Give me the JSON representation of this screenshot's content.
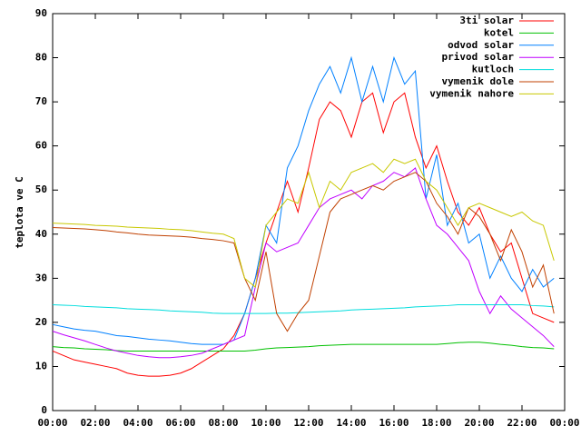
{
  "chart_data": {
    "type": "line",
    "ylabel": "teplota ve C",
    "x": [
      0,
      0.5,
      1,
      1.5,
      2,
      2.5,
      3,
      3.5,
      4,
      4.5,
      5,
      5.5,
      6,
      6.5,
      7,
      7.5,
      8,
      8.5,
      9,
      9.5,
      10,
      10.5,
      11,
      11.5,
      12,
      12.5,
      13,
      13.5,
      14,
      14.5,
      15,
      15.5,
      16,
      16.5,
      17,
      17.5,
      18,
      18.5,
      19,
      19.5,
      20,
      20.5,
      21,
      21.5,
      22,
      22.5,
      23,
      23.5
    ],
    "series": [
      {
        "name": "3ti solar",
        "color": "#ff0000",
        "values": [
          13.5,
          12.5,
          11.5,
          11,
          10.5,
          10,
          9.5,
          8.5,
          8,
          7.8,
          7.8,
          8,
          8.5,
          9.5,
          11,
          12.5,
          14,
          17,
          22,
          30,
          38,
          45,
          52,
          45,
          55,
          66,
          70,
          68,
          62,
          70,
          72,
          63,
          70,
          72,
          62,
          55,
          60,
          52,
          45,
          42,
          46,
          40,
          36,
          38,
          30,
          22,
          21,
          20
        ]
      },
      {
        "name": "kotel",
        "color": "#00c000",
        "values": [
          14.5,
          14.3,
          14.2,
          14,
          13.9,
          13.8,
          13.6,
          13.5,
          13.5,
          13.5,
          13.5,
          13.5,
          13.5,
          13.5,
          13.5,
          13.5,
          13.5,
          13.5,
          13.5,
          13.7,
          14,
          14.2,
          14.3,
          14.4,
          14.5,
          14.7,
          14.8,
          14.9,
          15,
          15,
          15,
          15,
          15,
          15,
          15,
          15,
          15,
          15.2,
          15.4,
          15.5,
          15.5,
          15.3,
          15,
          14.8,
          14.5,
          14.3,
          14.2,
          14
        ]
      },
      {
        "name": "odvod solar",
        "color": "#0080ff",
        "values": [
          19.5,
          19,
          18.5,
          18.2,
          18,
          17.5,
          17,
          16.8,
          16.5,
          16.2,
          16,
          15.8,
          15.5,
          15.2,
          15,
          15,
          15,
          16,
          22,
          30,
          42,
          38,
          55,
          60,
          68,
          74,
          78,
          72,
          80,
          70,
          78,
          70,
          80,
          74,
          77,
          48,
          58,
          42,
          47,
          38,
          40,
          30,
          35,
          30,
          27,
          32,
          28,
          30
        ]
      },
      {
        "name": "privod solar",
        "color": "#c000ff",
        "values": [
          18,
          17.2,
          16.5,
          15.8,
          15,
          14.2,
          13.5,
          13,
          12.5,
          12.2,
          12,
          12,
          12.2,
          12.5,
          13,
          14,
          15,
          16,
          17,
          28,
          38,
          36,
          37,
          38,
          42,
          46,
          48,
          49,
          50,
          48,
          51,
          52,
          54,
          53,
          55,
          48,
          42,
          40,
          37,
          34,
          27,
          22,
          26,
          23,
          21,
          19,
          17,
          14.5
        ]
      },
      {
        "name": "kutloch",
        "color": "#00dddd",
        "values": [
          24,
          23.9,
          23.8,
          23.6,
          23.5,
          23.4,
          23.3,
          23.1,
          23,
          22.9,
          22.8,
          22.6,
          22.5,
          22.4,
          22.3,
          22.1,
          22,
          22,
          22,
          22,
          22,
          22.1,
          22.1,
          22.2,
          22.3,
          22.4,
          22.5,
          22.6,
          22.8,
          22.9,
          23,
          23.1,
          23.2,
          23.3,
          23.5,
          23.6,
          23.7,
          23.8,
          24,
          24,
          24,
          24,
          24,
          24,
          24,
          23.8,
          23.7,
          23.5
        ]
      },
      {
        "name": "vymenik dole",
        "color": "#c04000",
        "values": [
          41.5,
          41.4,
          41.3,
          41.2,
          41,
          40.8,
          40.5,
          40.3,
          40,
          39.8,
          39.7,
          39.6,
          39.5,
          39.3,
          39,
          38.8,
          38.5,
          38,
          30,
          25,
          36,
          22,
          18,
          22,
          25,
          35,
          45,
          48,
          49,
          50,
          51,
          50,
          52,
          53,
          54,
          52,
          47,
          44,
          40,
          46,
          44,
          40,
          34,
          41,
          36,
          28,
          33,
          22
        ]
      },
      {
        "name": "vymenik nahore",
        "color": "#c8c800",
        "values": [
          42.5,
          42.4,
          42.3,
          42.2,
          42,
          41.9,
          41.8,
          41.6,
          41.5,
          41.4,
          41.3,
          41.1,
          41,
          40.8,
          40.5,
          40.2,
          40,
          39,
          30,
          28,
          42,
          45,
          48,
          47,
          54,
          46,
          52,
          50,
          54,
          55,
          56,
          54,
          57,
          56,
          57,
          52,
          50,
          46,
          42,
          46,
          47,
          46,
          45,
          44,
          45,
          43,
          42,
          34
        ]
      }
    ],
    "xlim": [
      0,
      24
    ],
    "xticks": [
      {
        "value": 0,
        "label": "00:00"
      },
      {
        "value": 2,
        "label": "02:00"
      },
      {
        "value": 4,
        "label": "04:00"
      },
      {
        "value": 6,
        "label": "06:00"
      },
      {
        "value": 8,
        "label": "08:00"
      },
      {
        "value": 10,
        "label": "10:00"
      },
      {
        "value": 12,
        "label": "12:00"
      },
      {
        "value": 14,
        "label": "14:00"
      },
      {
        "value": 16,
        "label": "16:00"
      },
      {
        "value": 18,
        "label": "18:00"
      },
      {
        "value": 20,
        "label": "20:00"
      },
      {
        "value": 22,
        "label": "22:00"
      },
      {
        "value": 24,
        "label": "00:00"
      }
    ],
    "ylim": [
      0,
      90
    ],
    "yticks": [
      0,
      10,
      20,
      30,
      40,
      50,
      60,
      70,
      80,
      90
    ],
    "legend": "top-right"
  }
}
